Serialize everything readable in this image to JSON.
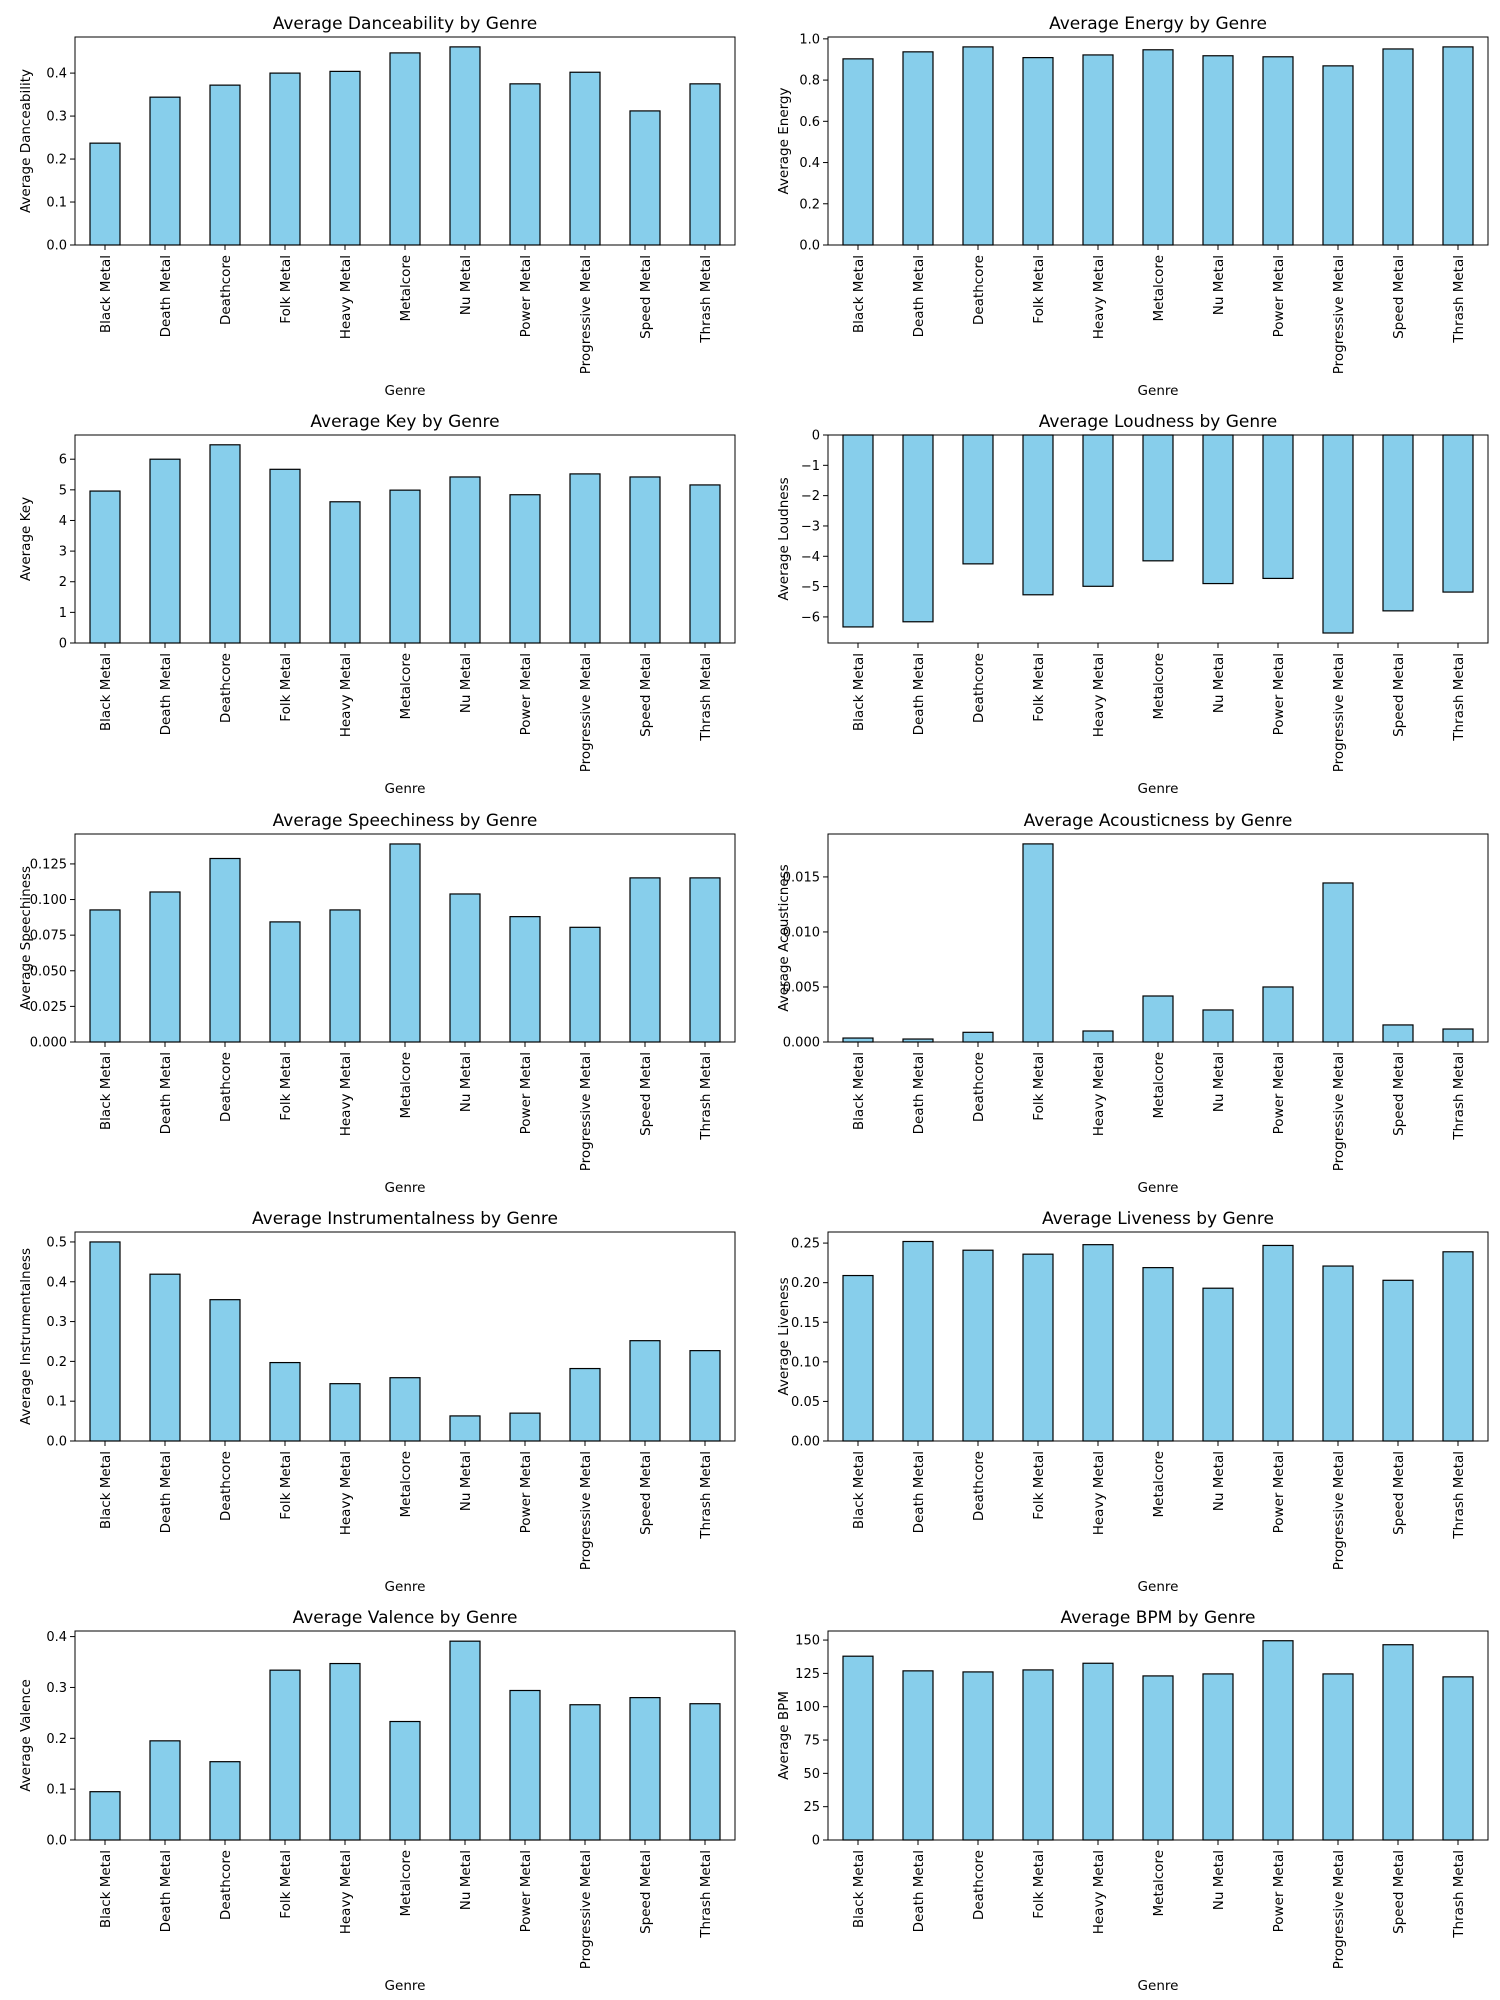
{
  "colors": {
    "bar_fill": "#87ceeb",
    "bar_edge": "#000000"
  },
  "chart_data": [
    {
      "type": "bar",
      "title": "Average Danceability by Genre",
      "xlabel": "Genre",
      "ylabel": "Average Danceability",
      "categories": [
        "Black Metal",
        "Death Metal",
        "Deathcore",
        "Folk Metal",
        "Heavy Metal",
        "Metalcore",
        "Nu Metal",
        "Power Metal",
        "Progressive Metal",
        "Speed Metal",
        "Thrash Metal"
      ],
      "values": [
        0.237,
        0.344,
        0.372,
        0.4,
        0.404,
        0.447,
        0.461,
        0.375,
        0.402,
        0.312,
        0.375
      ],
      "ylim": [
        0,
        0.484
      ],
      "yticks": [
        0.0,
        0.1,
        0.2,
        0.3,
        0.4
      ],
      "ytick_labels": [
        "0.0",
        "0.1",
        "0.2",
        "0.3",
        "0.4"
      ],
      "grid": false
    },
    {
      "type": "bar",
      "title": "Average Energy by Genre",
      "xlabel": "Genre",
      "ylabel": "Average Energy",
      "categories": [
        "Black Metal",
        "Death Metal",
        "Deathcore",
        "Folk Metal",
        "Heavy Metal",
        "Metalcore",
        "Nu Metal",
        "Power Metal",
        "Progressive Metal",
        "Speed Metal",
        "Thrash Metal"
      ],
      "values": [
        0.903,
        0.937,
        0.961,
        0.909,
        0.922,
        0.947,
        0.918,
        0.913,
        0.869,
        0.951,
        0.961
      ],
      "ylim": [
        0,
        1.009
      ],
      "yticks": [
        0.0,
        0.2,
        0.4,
        0.6,
        0.8,
        1.0
      ],
      "ytick_labels": [
        "0.0",
        "0.2",
        "0.4",
        "0.6",
        "0.8",
        "1.0"
      ],
      "grid": false
    },
    {
      "type": "bar",
      "title": "Average Key by Genre",
      "xlabel": "Genre",
      "ylabel": "Average Key",
      "categories": [
        "Black Metal",
        "Death Metal",
        "Deathcore",
        "Folk Metal",
        "Heavy Metal",
        "Metalcore",
        "Nu Metal",
        "Power Metal",
        "Progressive Metal",
        "Speed Metal",
        "Thrash Metal"
      ],
      "values": [
        4.96,
        6.0,
        6.47,
        5.67,
        4.61,
        4.99,
        5.42,
        4.84,
        5.52,
        5.42,
        5.16
      ],
      "ylim": [
        0,
        6.79
      ],
      "yticks": [
        0,
        1,
        2,
        3,
        4,
        5,
        6
      ],
      "ytick_labels": [
        "0",
        "1",
        "2",
        "3",
        "4",
        "5",
        "6"
      ],
      "grid": false
    },
    {
      "type": "bar",
      "title": "Average Loudness by Genre",
      "xlabel": "Genre",
      "ylabel": "Average Loudness",
      "categories": [
        "Black Metal",
        "Death Metal",
        "Deathcore",
        "Folk Metal",
        "Heavy Metal",
        "Metalcore",
        "Nu Metal",
        "Power Metal",
        "Progressive Metal",
        "Speed Metal",
        "Thrash Metal"
      ],
      "values": [
        -6.33,
        -6.16,
        -4.25,
        -5.27,
        -4.99,
        -4.15,
        -4.9,
        -4.73,
        -6.53,
        -5.8,
        -5.18
      ],
      "ylim": [
        -6.86,
        0
      ],
      "yticks": [
        0,
        -1,
        -2,
        -3,
        -4,
        -5,
        -6
      ],
      "ytick_labels": [
        "0",
        "−1",
        "−2",
        "−3",
        "−4",
        "−5",
        "−6"
      ],
      "grid": false
    },
    {
      "type": "bar",
      "title": "Average Speechiness by Genre",
      "xlabel": "Genre",
      "ylabel": "Average Speechiness",
      "categories": [
        "Black Metal",
        "Death Metal",
        "Deathcore",
        "Folk Metal",
        "Heavy Metal",
        "Metalcore",
        "Nu Metal",
        "Power Metal",
        "Progressive Metal",
        "Speed Metal",
        "Thrash Metal"
      ],
      "values": [
        0.0927,
        0.1053,
        0.1288,
        0.0843,
        0.0927,
        0.139,
        0.1039,
        0.088,
        0.0805,
        0.1152,
        0.1152
      ],
      "ylim": [
        0,
        0.146
      ],
      "yticks": [
        0.0,
        0.025,
        0.05,
        0.075,
        0.1,
        0.125
      ],
      "ytick_labels": [
        "0.000",
        "0.025",
        "0.050",
        "0.075",
        "0.100",
        "0.125"
      ],
      "grid": false
    },
    {
      "type": "bar",
      "title": "Average Acousticness by Genre",
      "xlabel": "Genre",
      "ylabel": "Average Acousticness",
      "categories": [
        "Black Metal",
        "Death Metal",
        "Deathcore",
        "Folk Metal",
        "Heavy Metal",
        "Metalcore",
        "Nu Metal",
        "Power Metal",
        "Progressive Metal",
        "Speed Metal",
        "Thrash Metal"
      ],
      "values": [
        0.00036,
        0.00027,
        0.00088,
        0.018,
        0.001,
        0.00418,
        0.00291,
        0.005,
        0.01445,
        0.00155,
        0.00118
      ],
      "ylim": [
        0,
        0.0189
      ],
      "yticks": [
        0.0,
        0.005,
        0.01,
        0.015
      ],
      "ytick_labels": [
        "0.000",
        "0.005",
        "0.010",
        "0.015"
      ],
      "grid": false
    },
    {
      "type": "bar",
      "title": "Average Instrumentalness by Genre",
      "xlabel": "Genre",
      "ylabel": "Average Instrumentalness",
      "categories": [
        "Black Metal",
        "Death Metal",
        "Deathcore",
        "Folk Metal",
        "Heavy Metal",
        "Metalcore",
        "Nu Metal",
        "Power Metal",
        "Progressive Metal",
        "Speed Metal",
        "Thrash Metal"
      ],
      "values": [
        0.5,
        0.419,
        0.355,
        0.197,
        0.144,
        0.159,
        0.063,
        0.07,
        0.182,
        0.252,
        0.227
      ],
      "ylim": [
        0,
        0.525
      ],
      "yticks": [
        0.0,
        0.1,
        0.2,
        0.3,
        0.4,
        0.5
      ],
      "ytick_labels": [
        "0.0",
        "0.1",
        "0.2",
        "0.3",
        "0.4",
        "0.5"
      ],
      "grid": false
    },
    {
      "type": "bar",
      "title": "Average Liveness by Genre",
      "xlabel": "Genre",
      "ylabel": "Average Liveness",
      "categories": [
        "Black Metal",
        "Death Metal",
        "Deathcore",
        "Folk Metal",
        "Heavy Metal",
        "Metalcore",
        "Nu Metal",
        "Power Metal",
        "Progressive Metal",
        "Speed Metal",
        "Thrash Metal"
      ],
      "values": [
        0.209,
        0.252,
        0.241,
        0.236,
        0.248,
        0.219,
        0.193,
        0.247,
        0.221,
        0.203,
        0.239
      ],
      "ylim": [
        0,
        0.264
      ],
      "yticks": [
        0.0,
        0.05,
        0.1,
        0.15,
        0.2,
        0.25
      ],
      "ytick_labels": [
        "0.00",
        "0.05",
        "0.10",
        "0.15",
        "0.20",
        "0.25"
      ],
      "grid": false
    },
    {
      "type": "bar",
      "title": "Average Valence by Genre",
      "xlabel": "Genre",
      "ylabel": "Average Valence",
      "categories": [
        "Black Metal",
        "Death Metal",
        "Deathcore",
        "Folk Metal",
        "Heavy Metal",
        "Metalcore",
        "Nu Metal",
        "Power Metal",
        "Progressive Metal",
        "Speed Metal",
        "Thrash Metal"
      ],
      "values": [
        0.095,
        0.195,
        0.154,
        0.334,
        0.347,
        0.233,
        0.391,
        0.294,
        0.266,
        0.28,
        0.268
      ],
      "ylim": [
        0,
        0.411
      ],
      "yticks": [
        0.0,
        0.1,
        0.2,
        0.3,
        0.4
      ],
      "ytick_labels": [
        "0.0",
        "0.1",
        "0.2",
        "0.3",
        "0.4"
      ],
      "grid": false
    },
    {
      "type": "bar",
      "title": "Average BPM by Genre",
      "xlabel": "Genre",
      "ylabel": "Average BPM",
      "categories": [
        "Black Metal",
        "Death Metal",
        "Deathcore",
        "Folk Metal",
        "Heavy Metal",
        "Metalcore",
        "Nu Metal",
        "Power Metal",
        "Progressive Metal",
        "Speed Metal",
        "Thrash Metal"
      ],
      "values": [
        137.9,
        126.9,
        126.1,
        127.6,
        132.6,
        123.1,
        124.6,
        149.5,
        124.6,
        146.5,
        122.4
      ],
      "ylim": [
        0,
        156.8
      ],
      "yticks": [
        0,
        25,
        50,
        75,
        100,
        125,
        150
      ],
      "ytick_labels": [
        "0",
        "25",
        "50",
        "75",
        "100",
        "125",
        "150"
      ],
      "grid": false
    }
  ]
}
